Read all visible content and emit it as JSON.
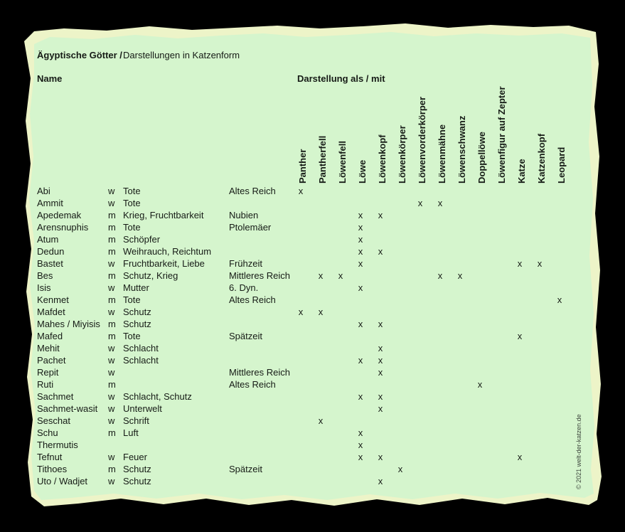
{
  "header": {
    "title_bold": "Ägyptische Götter /",
    "title_regular": "Darstellungen in Katzenform",
    "name_label": "Name",
    "depiction_label": "Darstellung als / mit"
  },
  "footer": {
    "copyright": "© 2021 welt-der-katzen.de"
  },
  "colors": {
    "background": "#000000",
    "paper": "#d5f5cd",
    "paper_edge": "#edf4c8",
    "text": "#161b16"
  },
  "table": {
    "mark_symbol": "x",
    "depiction_columns": [
      "Panther",
      "Pantherfell",
      "Löwenfell",
      "Löwe",
      "Löwenkopf",
      "Löwenkörper",
      "Löwenvorderkörper",
      "Löwenmähne",
      "Löwenschwanz",
      "Doppellöwe",
      "Löwenfigur auf Zepter",
      "Katze",
      "Katzenkopf",
      "Leopard"
    ],
    "rows": [
      {
        "name": "Abi",
        "gender": "w",
        "domain": "Tote",
        "era": "Altes Reich",
        "marks": [
          0
        ]
      },
      {
        "name": "Ammit",
        "gender": "w",
        "domain": "Tote",
        "era": "",
        "marks": [
          6,
          7
        ]
      },
      {
        "name": "Apedemak",
        "gender": "m",
        "domain": "Krieg, Fruchtbarkeit",
        "era": "Nubien",
        "marks": [
          3,
          4
        ]
      },
      {
        "name": "Arensnuphis",
        "gender": "m",
        "domain": "Tote",
        "era": "Ptolemäer",
        "marks": [
          3
        ]
      },
      {
        "name": "Atum",
        "gender": "m",
        "domain": "Schöpfer",
        "era": "",
        "marks": [
          3
        ]
      },
      {
        "name": "Dedun",
        "gender": "m",
        "domain": "Weihrauch, Reichtum",
        "era": "",
        "marks": [
          3,
          4
        ]
      },
      {
        "name": "Bastet",
        "gender": "w",
        "domain": "Fruchtbarkeit, Liebe",
        "era": "Frühzeit",
        "marks": [
          3,
          11,
          12
        ]
      },
      {
        "name": "Bes",
        "gender": "m",
        "domain": "Schutz, Krieg",
        "era": "Mittleres Reich",
        "marks": [
          1,
          2,
          7,
          8
        ]
      },
      {
        "name": "Isis",
        "gender": "w",
        "domain": "Mutter",
        "era": "6. Dyn.",
        "marks": [
          3
        ]
      },
      {
        "name": "Kenmet",
        "gender": "m",
        "domain": "Tote",
        "era": "Altes Reich",
        "marks": [
          13
        ]
      },
      {
        "name": "Mafdet",
        "gender": "w",
        "domain": "Schutz",
        "era": "",
        "marks": [
          0,
          1
        ]
      },
      {
        "name": "Mahes / Miyisis",
        "gender": "m",
        "domain": "Schutz",
        "era": "",
        "marks": [
          3,
          4
        ]
      },
      {
        "name": "Mafed",
        "gender": "m",
        "domain": "Tote",
        "era": "Spätzeit",
        "marks": [
          11
        ]
      },
      {
        "name": "Mehit",
        "gender": "w",
        "domain": "Schlacht",
        "era": "",
        "marks": [
          4
        ]
      },
      {
        "name": "Pachet",
        "gender": "w",
        "domain": "Schlacht",
        "era": "",
        "marks": [
          3,
          4
        ]
      },
      {
        "name": "Repit",
        "gender": "w",
        "domain": "",
        "era": "Mittleres Reich",
        "marks": [
          4
        ]
      },
      {
        "name": "Ruti",
        "gender": "m",
        "domain": "",
        "era": "Altes Reich",
        "marks": [
          9
        ]
      },
      {
        "name": "Sachmet",
        "gender": "w",
        "domain": "Schlacht, Schutz",
        "era": "",
        "marks": [
          3,
          4
        ]
      },
      {
        "name": "Sachmet-wasit",
        "gender": "w",
        "domain": "Unterwelt",
        "era": "",
        "marks": [
          4
        ]
      },
      {
        "name": "Seschat",
        "gender": "w",
        "domain": "Schrift",
        "era": "",
        "marks": [
          1
        ]
      },
      {
        "name": "Schu",
        "gender": "m",
        "domain": "Luft",
        "era": "",
        "marks": [
          3
        ]
      },
      {
        "name": "Thermutis",
        "gender": "",
        "domain": "",
        "era": "",
        "marks": [
          3
        ]
      },
      {
        "name": "Tefnut",
        "gender": "w",
        "domain": "Feuer",
        "era": "",
        "marks": [
          3,
          4,
          11
        ]
      },
      {
        "name": "Tithoes",
        "gender": "m",
        "domain": "Schutz",
        "era": "Spätzeit",
        "marks": [
          5
        ]
      },
      {
        "name": "Uto / Wadjet",
        "gender": "w",
        "domain": "Schutz",
        "era": "",
        "marks": [
          4
        ]
      }
    ]
  }
}
